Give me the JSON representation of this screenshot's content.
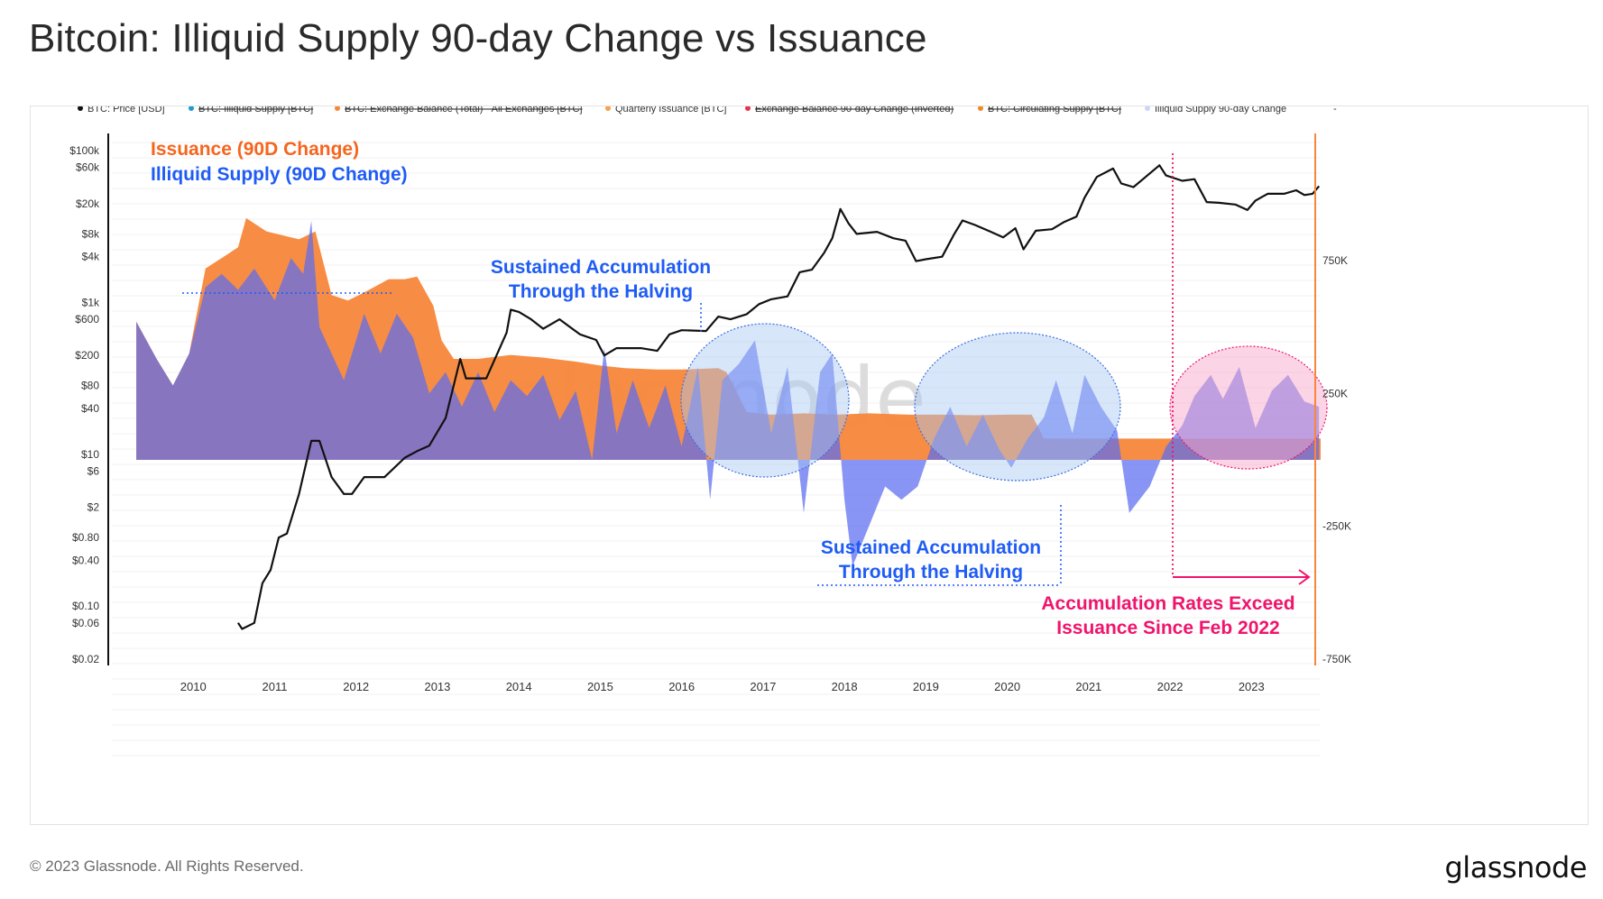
{
  "title": "Bitcoin: Illiquid Supply 90-day Change vs Issuance",
  "footer": {
    "copyright": "© 2023 Glassnode. All Rights Reserved.",
    "brand": "glassnode",
    "watermark": "glassnode"
  },
  "colors": {
    "price": "#111111",
    "illiquid": "#5b6cf0",
    "issuance": "#f7873a",
    "overlap": "#7a5cc4",
    "blue_text": "#1f5cf5",
    "orange_text": "#f6651e",
    "pink_text": "#f0146c",
    "blue_ellipse": "#a9c7f5",
    "pink_ellipse": "#f7aacc",
    "right_axis": "#f7873a"
  },
  "legend": [
    {
      "label": "BTC: Price [USD]",
      "color": "#111111",
      "struck": false
    },
    {
      "label": "BTC: Illiquid Supply [BTC]",
      "color": "#1f9bd1",
      "struck": true
    },
    {
      "label": "BTC: Exchange Balance (Total) - All Exchanges [BTC]",
      "color": "#f7873a",
      "struck": true
    },
    {
      "label": "Quarterly Issuance [BTC]",
      "color": "#f7a050",
      "struck": false
    },
    {
      "label": "Exchange Balance 90-day Change (Inverted)",
      "color": "#e8334a",
      "struck": true
    },
    {
      "label": "BTC: Circulating Supply [BTC]",
      "color": "#f08a24",
      "struck": true
    },
    {
      "label": "Illiquid Supply 90-day Change",
      "color": "#c9d6fb",
      "struck": false
    },
    {
      "label": "-",
      "color": "",
      "struck": false
    }
  ],
  "annotations": {
    "issuance_label": "Issuance (90D Change)",
    "illiquid_label": "Illiquid Supply (90D Change)",
    "sustained_1_line1": "Sustained Accumulation",
    "sustained_1_line2": "Through the Halving",
    "sustained_2_line1": "Sustained Accumulation",
    "sustained_2_line2": "Through the Halving",
    "accum_line1": "Accumulation Rates Exceed",
    "accum_line2": "Issuance Since Feb 2022"
  },
  "chart_data": {
    "type": "line",
    "x_axis": {
      "ticks": [
        "2010",
        "2011",
        "2012",
        "2013",
        "2014",
        "2015",
        "2016",
        "2017",
        "2018",
        "2019",
        "2020",
        "2021",
        "2022",
        "2023"
      ],
      "range": [
        2009.0,
        2023.85
      ]
    },
    "y_left": {
      "label": "BTC: Price [USD]",
      "scale": "log",
      "ticks": [
        "$100k",
        "$60k",
        "$20k",
        "$8k",
        "$4k",
        "$1k",
        "$600",
        "$200",
        "$80",
        "$40",
        "$10",
        "$6",
        "$2",
        "$0.80",
        "$0.40",
        "$0.10",
        "$0.06",
        "$0.02"
      ],
      "tick_values": [
        100000,
        60000,
        20000,
        8000,
        4000,
        1000,
        600,
        200,
        80,
        40,
        10,
        6,
        2,
        0.8,
        0.4,
        0.1,
        0.06,
        0.02
      ]
    },
    "y_right": {
      "ticks": [
        "750K",
        "250K",
        "-250K",
        "-750K"
      ],
      "tick_values": [
        750000,
        250000,
        -250000,
        -750000
      ]
    },
    "grid": true,
    "legend_position": "top",
    "series": [
      {
        "name": "BTC: Price [USD]",
        "axis": "left",
        "points": [
          [
            2010.55,
            0.06
          ],
          [
            2010.6,
            0.05
          ],
          [
            2010.75,
            0.06
          ],
          [
            2010.85,
            0.2
          ],
          [
            2010.95,
            0.3
          ],
          [
            2011.05,
            0.8
          ],
          [
            2011.15,
            0.9
          ],
          [
            2011.3,
            3.0
          ],
          [
            2011.45,
            15
          ],
          [
            2011.55,
            15
          ],
          [
            2011.7,
            5
          ],
          [
            2011.85,
            3
          ],
          [
            2011.95,
            3
          ],
          [
            2012.1,
            5
          ],
          [
            2012.35,
            5
          ],
          [
            2012.6,
            9
          ],
          [
            2012.75,
            11
          ],
          [
            2012.9,
            13
          ],
          [
            2013.1,
            30
          ],
          [
            2013.28,
            180
          ],
          [
            2013.35,
            100
          ],
          [
            2013.6,
            100
          ],
          [
            2013.85,
            400
          ],
          [
            2013.9,
            800
          ],
          [
            2014.0,
            750
          ],
          [
            2014.15,
            600
          ],
          [
            2014.3,
            450
          ],
          [
            2014.5,
            600
          ],
          [
            2014.75,
            380
          ],
          [
            2014.95,
            320
          ],
          [
            2015.05,
            200
          ],
          [
            2015.2,
            250
          ],
          [
            2015.5,
            250
          ],
          [
            2015.7,
            230
          ],
          [
            2015.85,
            380
          ],
          [
            2016.0,
            430
          ],
          [
            2016.3,
            420
          ],
          [
            2016.45,
            650
          ],
          [
            2016.6,
            600
          ],
          [
            2016.8,
            700
          ],
          [
            2016.95,
            950
          ],
          [
            2017.1,
            1100
          ],
          [
            2017.3,
            1200
          ],
          [
            2017.45,
            2500
          ],
          [
            2017.6,
            2700
          ],
          [
            2017.75,
            4500
          ],
          [
            2017.85,
            7000
          ],
          [
            2017.95,
            17000
          ],
          [
            2018.05,
            11000
          ],
          [
            2018.15,
            8000
          ],
          [
            2018.4,
            8500
          ],
          [
            2018.6,
            7000
          ],
          [
            2018.75,
            6500
          ],
          [
            2018.88,
            3500
          ],
          [
            2019.0,
            3700
          ],
          [
            2019.2,
            4000
          ],
          [
            2019.35,
            8000
          ],
          [
            2019.45,
            12000
          ],
          [
            2019.6,
            10500
          ],
          [
            2019.8,
            8500
          ],
          [
            2019.95,
            7200
          ],
          [
            2020.1,
            9500
          ],
          [
            2020.2,
            5000
          ],
          [
            2020.35,
            8800
          ],
          [
            2020.55,
            9200
          ],
          [
            2020.7,
            11500
          ],
          [
            2020.85,
            13500
          ],
          [
            2020.95,
            24000
          ],
          [
            2021.1,
            45000
          ],
          [
            2021.3,
            58000
          ],
          [
            2021.4,
            37000
          ],
          [
            2021.55,
            33000
          ],
          [
            2021.7,
            45000
          ],
          [
            2021.87,
            64000
          ],
          [
            2021.95,
            47000
          ],
          [
            2022.15,
            40000
          ],
          [
            2022.3,
            42000
          ],
          [
            2022.45,
            21000
          ],
          [
            2022.6,
            20500
          ],
          [
            2022.8,
            19500
          ],
          [
            2022.95,
            16500
          ],
          [
            2023.05,
            22000
          ],
          [
            2023.2,
            27000
          ],
          [
            2023.4,
            27000
          ],
          [
            2023.55,
            30000
          ],
          [
            2023.65,
            26000
          ],
          [
            2023.75,
            27000
          ],
          [
            2023.83,
            34000
          ]
        ]
      },
      {
        "name": "Quarterly Issuance [BTC]",
        "axis": "right",
        "points": [
          [
            2009.3,
            520000
          ],
          [
            2009.55,
            380000
          ],
          [
            2009.75,
            280000
          ],
          [
            2009.95,
            400000
          ],
          [
            2010.15,
            720000
          ],
          [
            2010.35,
            760000
          ],
          [
            2010.55,
            800000
          ],
          [
            2010.65,
            910000
          ],
          [
            2010.9,
            860000
          ],
          [
            2011.3,
            830000
          ],
          [
            2011.5,
            860000
          ],
          [
            2011.7,
            620000
          ],
          [
            2011.9,
            600000
          ],
          [
            2012.1,
            630000
          ],
          [
            2012.4,
            680000
          ],
          [
            2012.6,
            680000
          ],
          [
            2012.75,
            690000
          ],
          [
            2012.95,
            580000
          ],
          [
            2013.05,
            450000
          ],
          [
            2013.2,
            380000
          ],
          [
            2013.5,
            380000
          ],
          [
            2013.9,
            395000
          ],
          [
            2014.3,
            385000
          ],
          [
            2014.7,
            370000
          ],
          [
            2015.0,
            355000
          ],
          [
            2015.3,
            345000
          ],
          [
            2015.7,
            340000
          ],
          [
            2016.0,
            340000
          ],
          [
            2016.45,
            345000
          ],
          [
            2016.55,
            330000
          ],
          [
            2016.8,
            180000
          ],
          [
            2017.1,
            170000
          ],
          [
            2017.5,
            175000
          ],
          [
            2017.9,
            170000
          ],
          [
            2018.3,
            175000
          ],
          [
            2018.8,
            170000
          ],
          [
            2019.2,
            170000
          ],
          [
            2019.6,
            168000
          ],
          [
            2020.0,
            170000
          ],
          [
            2020.3,
            170000
          ],
          [
            2020.45,
            80000
          ],
          [
            2020.8,
            80000
          ],
          [
            2021.2,
            80000
          ],
          [
            2021.7,
            80000
          ],
          [
            2022.2,
            80000
          ],
          [
            2022.7,
            80000
          ],
          [
            2023.2,
            80000
          ],
          [
            2023.85,
            80000
          ]
        ]
      },
      {
        "name": "Illiquid Supply 90-day Change",
        "axis": "right",
        "points": [
          [
            2009.3,
            520000
          ],
          [
            2009.55,
            380000
          ],
          [
            2009.75,
            280000
          ],
          [
            2009.95,
            400000
          ],
          [
            2010.15,
            650000
          ],
          [
            2010.35,
            700000
          ],
          [
            2010.55,
            640000
          ],
          [
            2010.75,
            720000
          ],
          [
            2011.0,
            600000
          ],
          [
            2011.2,
            760000
          ],
          [
            2011.35,
            700000
          ],
          [
            2011.45,
            900000
          ],
          [
            2011.55,
            500000
          ],
          [
            2011.7,
            400000
          ],
          [
            2011.85,
            300000
          ],
          [
            2012.1,
            550000
          ],
          [
            2012.3,
            400000
          ],
          [
            2012.5,
            550000
          ],
          [
            2012.7,
            460000
          ],
          [
            2012.9,
            250000
          ],
          [
            2013.1,
            330000
          ],
          [
            2013.3,
            200000
          ],
          [
            2013.5,
            330000
          ],
          [
            2013.7,
            180000
          ],
          [
            2013.9,
            300000
          ],
          [
            2014.1,
            240000
          ],
          [
            2014.3,
            320000
          ],
          [
            2014.5,
            150000
          ],
          [
            2014.7,
            260000
          ],
          [
            2014.9,
            0
          ],
          [
            2015.05,
            420000
          ],
          [
            2015.2,
            100000
          ],
          [
            2015.4,
            300000
          ],
          [
            2015.6,
            120000
          ],
          [
            2015.8,
            280000
          ],
          [
            2016.0,
            50000
          ],
          [
            2016.2,
            350000
          ],
          [
            2016.35,
            -150000
          ],
          [
            2016.5,
            300000
          ],
          [
            2016.7,
            360000
          ],
          [
            2016.9,
            450000
          ],
          [
            2017.1,
            100000
          ],
          [
            2017.3,
            350000
          ],
          [
            2017.5,
            -200000
          ],
          [
            2017.7,
            330000
          ],
          [
            2017.85,
            400000
          ],
          [
            2018.0,
            -150000
          ],
          [
            2018.1,
            -400000
          ],
          [
            2018.3,
            -250000
          ],
          [
            2018.5,
            -100000
          ],
          [
            2018.7,
            -150000
          ],
          [
            2018.9,
            -100000
          ],
          [
            2019.1,
            80000
          ],
          [
            2019.3,
            200000
          ],
          [
            2019.5,
            50000
          ],
          [
            2019.7,
            170000
          ],
          [
            2019.9,
            40000
          ],
          [
            2020.05,
            -30000
          ],
          [
            2020.25,
            80000
          ],
          [
            2020.45,
            160000
          ],
          [
            2020.6,
            300000
          ],
          [
            2020.8,
            100000
          ],
          [
            2020.95,
            320000
          ],
          [
            2021.15,
            200000
          ],
          [
            2021.35,
            110000
          ],
          [
            2021.5,
            -200000
          ],
          [
            2021.75,
            -100000
          ],
          [
            2021.95,
            50000
          ],
          [
            2022.15,
            130000
          ],
          [
            2022.3,
            240000
          ],
          [
            2022.5,
            320000
          ],
          [
            2022.65,
            230000
          ],
          [
            2022.85,
            350000
          ],
          [
            2023.05,
            120000
          ],
          [
            2023.25,
            260000
          ],
          [
            2023.45,
            320000
          ],
          [
            2023.65,
            220000
          ],
          [
            2023.83,
            200000
          ]
        ]
      }
    ]
  }
}
